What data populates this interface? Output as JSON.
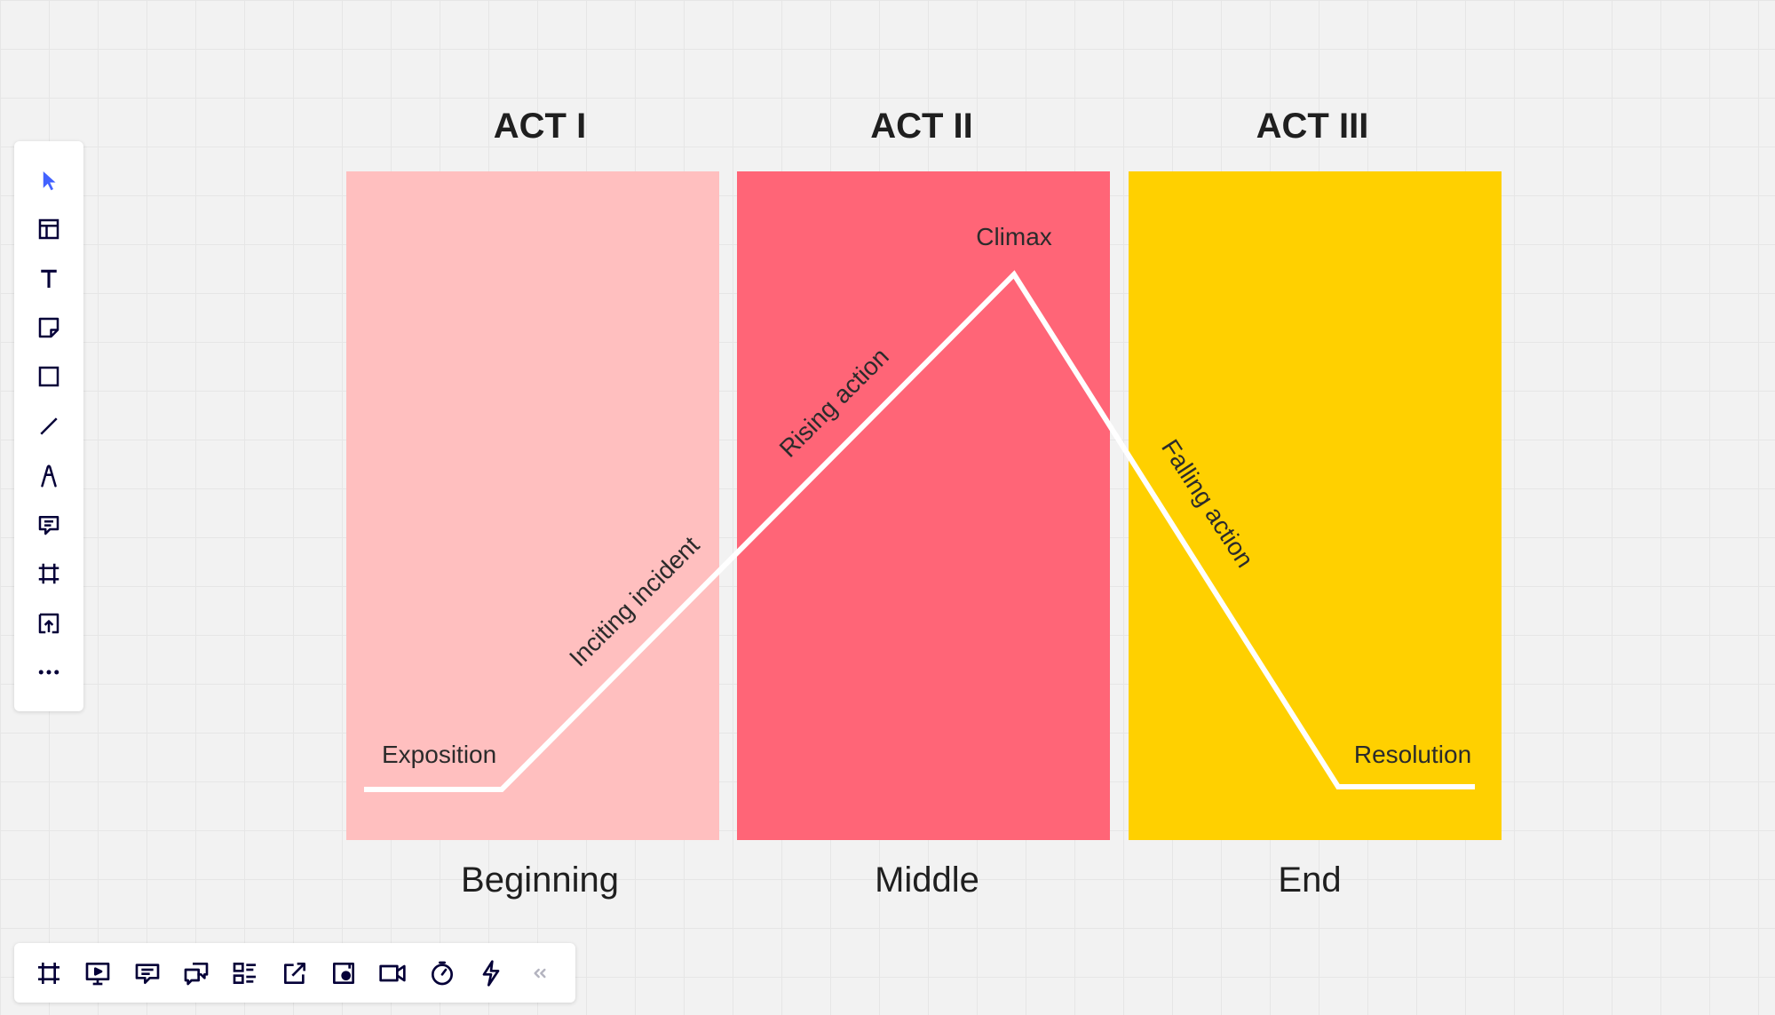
{
  "canvas": {
    "background": "#f2f2f2",
    "grid_color": "#e6e6e6"
  },
  "diagram": {
    "acts": [
      {
        "heading": "ACT I",
        "section": "Beginning",
        "color": "#ffbfbf"
      },
      {
        "heading": "ACT II",
        "section": "Middle",
        "color": "#ff6577"
      },
      {
        "heading": "ACT III",
        "section": "End",
        "color": "#ffd000"
      }
    ],
    "plot_points": {
      "exposition": "Exposition",
      "inciting_incident": "Inciting incident",
      "rising_action": "Rising action",
      "climax": "Climax",
      "falling_action": "Falling action",
      "resolution": "Resolution"
    },
    "line_color": "#ffffff"
  },
  "left_toolbar": {
    "tools": [
      {
        "icon": "pointer-icon",
        "active": true
      },
      {
        "icon": "templates-icon"
      },
      {
        "icon": "text-icon"
      },
      {
        "icon": "sticky-note-icon"
      },
      {
        "icon": "rectangle-shape-icon"
      },
      {
        "icon": "line-icon"
      },
      {
        "icon": "pen-icon"
      },
      {
        "icon": "comment-icon"
      },
      {
        "icon": "frame-icon"
      },
      {
        "icon": "upload-icon"
      },
      {
        "icon": "more-icon"
      }
    ]
  },
  "bottom_toolbar": {
    "tools": [
      {
        "icon": "frames-icon"
      },
      {
        "icon": "presentation-icon"
      },
      {
        "icon": "comments-icon"
      },
      {
        "icon": "chat-icon"
      },
      {
        "icon": "card-list-icon"
      },
      {
        "icon": "share-icon"
      },
      {
        "icon": "screen-record-icon"
      },
      {
        "icon": "video-call-icon"
      },
      {
        "icon": "timer-icon"
      },
      {
        "icon": "lightning-icon"
      },
      {
        "icon": "collapse-icon"
      }
    ]
  },
  "icon_color": "#050038",
  "accent_color": "#4262ff"
}
